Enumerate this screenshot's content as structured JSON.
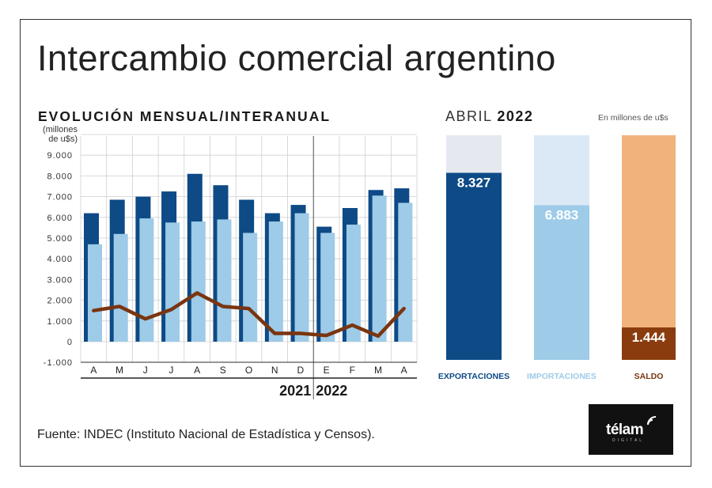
{
  "title": "Intercambio comercial argentino",
  "left_panel": {
    "subtitle": "EVOLUCIÓN MENSUAL/INTERANUAL",
    "unit_line1": "(millones",
    "unit_line2": "de u$s)"
  },
  "right_panel": {
    "month": "ABRIL",
    "year": "2022",
    "unit": "En millones de u$s"
  },
  "source": "Fuente: INDEC (Instituto Nacional de Estadística y Censos).",
  "logo": {
    "word": "télam",
    "sub": "DIGITAL"
  },
  "colors": {
    "exports": "#0d4a86",
    "imports": "#9dcbe8",
    "balance": "#7a3510",
    "imports_bg": "#dbe9f6",
    "exports_bg": "#e6e8f0",
    "balance_bg": "#f1b27c",
    "balance_bar": "#8a3c0e"
  },
  "chart_data": [
    {
      "type": "bar",
      "categories": [
        "A",
        "M",
        "J",
        "J",
        "A",
        "S",
        "O",
        "N",
        "D",
        "E",
        "F",
        "M",
        "A"
      ],
      "series": [
        {
          "name": "Exportaciones",
          "kind": "bar",
          "values": [
            6200,
            6850,
            7000,
            7250,
            8100,
            7550,
            6850,
            6200,
            6600,
            5550,
            6450,
            7320,
            7400
          ]
        },
        {
          "name": "Importaciones",
          "kind": "bar",
          "values": [
            4700,
            5200,
            5950,
            5750,
            5800,
            5900,
            5250,
            5800,
            6200,
            5250,
            5650,
            7050,
            6700
          ]
        },
        {
          "name": "Saldo",
          "kind": "line",
          "values": [
            1500,
            1700,
            1100,
            1550,
            2350,
            1700,
            1600,
            400,
            400,
            300,
            800,
            270,
            1600
          ]
        }
      ],
      "year_labels": [
        "2021",
        "2022"
      ],
      "yticks": [
        "-1.000",
        "0",
        "1.000",
        "2.000",
        "3.000",
        "4.000",
        "5.000",
        "6.000",
        "7.000",
        "8.000",
        "9.000"
      ],
      "ylim": [
        -1000,
        10000
      ],
      "grid": true
    },
    {
      "type": "bar",
      "categories": [
        "EXPORTACIONES",
        "IMPORTACIONES",
        "SALDO"
      ],
      "values": [
        8327,
        6883,
        1444
      ],
      "labels": [
        "8.327",
        "6.883",
        "1.444"
      ]
    }
  ]
}
